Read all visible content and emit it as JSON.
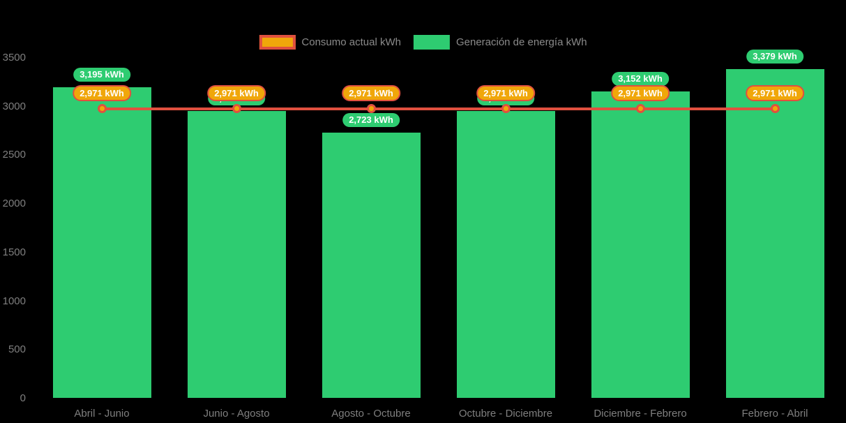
{
  "legend": {
    "items": [
      {
        "label": "Consumo actual kWh",
        "series": "consumo"
      },
      {
        "label": "Generación de energía kWh",
        "series": "generacion"
      }
    ]
  },
  "colors": {
    "background": "#000000",
    "bar_green": "#2ecc71",
    "line_red": "#e0503f",
    "marker_amber": "#f0a70a",
    "axis_text": "#7f7f7f",
    "legend_text": "#8a8a8a",
    "data_label_text": "#ffffff"
  },
  "chart_data": {
    "type": "bar",
    "title": "",
    "xlabel": "",
    "ylabel": "",
    "categories": [
      "Abril - Junio",
      "Junio - Agosto",
      "Agosto - Octubre",
      "Octubre - Diciembre",
      "Diciembre - Febrero",
      "Febrero - Abril"
    ],
    "series": [
      {
        "name": "Generación de energía kWh",
        "type": "bar",
        "color": "#2ecc71",
        "values": [
          3195,
          2950,
          2723,
          2950,
          3152,
          3379
        ],
        "data_labels": [
          "3,195 kWh",
          null,
          "2,723 kWh",
          null,
          "3,152 kWh",
          "3,379 kWh"
        ],
        "occluded_label_indices": [
          1,
          3
        ],
        "estimated_value_indices": [
          1,
          3
        ]
      },
      {
        "name": "Consumo actual kWh",
        "type": "line",
        "color": "#e0503f",
        "marker_color": "#f0a70a",
        "values": [
          2971,
          2971,
          2971,
          2971,
          2971,
          2971
        ],
        "data_labels": [
          "2,971 kWh",
          "2,971 kWh",
          "2,971 kWh",
          "2,971 kWh",
          "2,971 kWh",
          "2,971 kWh"
        ]
      }
    ],
    "ylim": [
      0,
      3500
    ],
    "yticks": [
      0,
      500,
      1000,
      1500,
      2000,
      2500,
      3000,
      3500
    ],
    "grid": false,
    "legend_position": "top"
  }
}
